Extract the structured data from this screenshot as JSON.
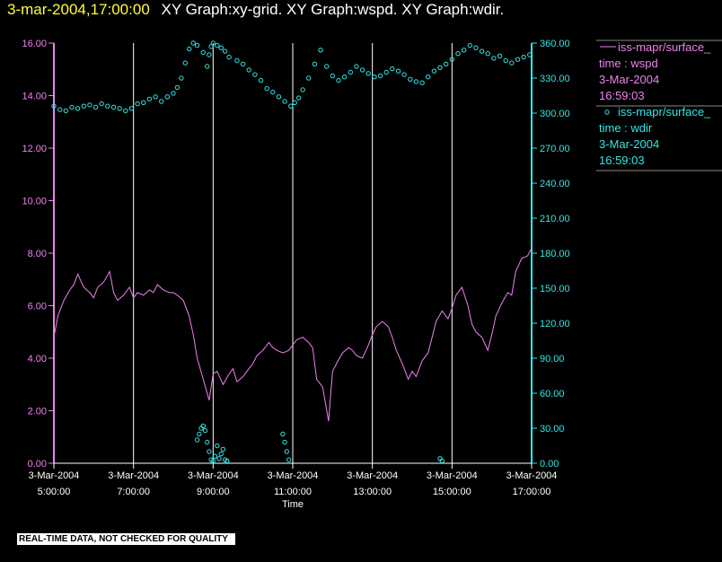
{
  "header": {
    "timestamp": "3-mar-2004,17:00:00",
    "graphs": "XY Graph:xy-grid.  XY Graph:wspd.  XY Graph:wdir."
  },
  "banner": "REAL-TIME DATA, NOT CHECKED FOR QUALITY",
  "colors": {
    "left_axis": "#ee82ee",
    "right_axis": "#33e6e6",
    "grid": "#ffffff",
    "background": "#000000"
  },
  "legend": [
    {
      "marker": "line",
      "lines": [
        "iss-mapr/surface_",
        "time : wspd",
        "3-Mar-2004",
        "16:59:03"
      ],
      "color": "#ee82ee"
    },
    {
      "marker": "circle",
      "lines": [
        "iss-mapr/surface_",
        "time : wdir",
        "3-Mar-2004",
        "16:59:03"
      ],
      "color": "#33e6e6"
    }
  ],
  "chart_data": {
    "type": "line",
    "xlabel": "Time",
    "x_range_hours": [
      5.0,
      17.0
    ],
    "x_ticks": [
      {
        "date": "3-Mar-2004",
        "time": "5:00:00"
      },
      {
        "date": "3-Mar-2004",
        "time": "7:00:00"
      },
      {
        "date": "3-Mar-2004",
        "time": "9:00:00"
      },
      {
        "date": "3-Mar-2004",
        "time": "11:00:00"
      },
      {
        "date": "3-Mar-2004",
        "time": "13:00:00"
      },
      {
        "date": "3-Mar-2004",
        "time": "15:00:00"
      },
      {
        "date": "3-Mar-2004",
        "time": "17:00:00"
      }
    ],
    "grid": "vertical",
    "y_left": {
      "range": [
        0,
        16
      ],
      "ticks": [
        "0.00",
        "2.00",
        "4.00",
        "6.00",
        "8.00",
        "10.00",
        "12.00",
        "14.00",
        "16.00"
      ]
    },
    "y_right": {
      "range": [
        0,
        360
      ],
      "ticks": [
        "0.00",
        "30.00",
        "60.00",
        "90.00",
        "120.00",
        "150.00",
        "180.00",
        "210.00",
        "240.00",
        "270.00",
        "300.00",
        "330.00",
        "360.00"
      ]
    },
    "series": [
      {
        "name": "iss-mapr/surface_ time : wspd",
        "axis": "left",
        "style": "line",
        "x_hours": [
          5.0,
          5.1,
          5.25,
          5.4,
          5.5,
          5.6,
          5.75,
          5.9,
          6.0,
          6.1,
          6.25,
          6.4,
          6.5,
          6.6,
          6.75,
          6.9,
          7.0,
          7.1,
          7.25,
          7.4,
          7.5,
          7.6,
          7.75,
          7.9,
          8.0,
          8.1,
          8.25,
          8.4,
          8.5,
          8.6,
          8.75,
          8.9,
          9.0,
          9.1,
          9.25,
          9.4,
          9.5,
          9.6,
          9.75,
          9.9,
          10.0,
          10.1,
          10.25,
          10.4,
          10.5,
          10.6,
          10.75,
          10.9,
          11.0,
          11.1,
          11.25,
          11.4,
          11.5,
          11.6,
          11.75,
          11.9,
          12.0,
          12.1,
          12.25,
          12.4,
          12.5,
          12.6,
          12.75,
          12.9,
          13.0,
          13.1,
          13.25,
          13.4,
          13.5,
          13.6,
          13.75,
          13.9,
          14.0,
          14.1,
          14.25,
          14.4,
          14.5,
          14.6,
          14.75,
          14.9,
          15.0,
          15.1,
          15.25,
          15.4,
          15.5,
          15.6,
          15.75,
          15.9,
          16.0,
          16.1,
          16.25,
          16.4,
          16.5,
          16.6,
          16.75,
          16.9,
          17.0
        ],
        "values": [
          4.8,
          5.6,
          6.2,
          6.6,
          6.8,
          7.2,
          6.7,
          6.5,
          6.3,
          6.7,
          6.9,
          7.3,
          6.5,
          6.2,
          6.4,
          6.7,
          6.3,
          6.5,
          6.4,
          6.6,
          6.5,
          6.8,
          6.6,
          6.5,
          6.5,
          6.4,
          6.2,
          5.6,
          4.9,
          4.0,
          3.2,
          2.4,
          3.4,
          3.5,
          3.0,
          3.4,
          3.6,
          3.1,
          3.3,
          3.6,
          3.8,
          4.1,
          4.3,
          4.6,
          4.4,
          4.3,
          4.2,
          4.3,
          4.5,
          4.7,
          4.8,
          4.6,
          4.4,
          3.2,
          2.9,
          1.6,
          3.5,
          3.8,
          4.2,
          4.4,
          4.3,
          4.1,
          4.0,
          4.5,
          4.9,
          5.2,
          5.4,
          5.2,
          4.8,
          4.3,
          3.8,
          3.2,
          3.5,
          3.3,
          3.9,
          4.2,
          4.8,
          5.4,
          5.8,
          5.5,
          5.9,
          6.4,
          6.7,
          6.0,
          5.3,
          5.0,
          4.8,
          4.3,
          4.9,
          5.6,
          6.1,
          6.5,
          6.4,
          7.3,
          7.8,
          7.9,
          8.2
        ]
      },
      {
        "name": "iss-mapr/surface_ time : wdir",
        "axis": "right",
        "style": "circles",
        "x_hours": [
          5.0,
          5.15,
          5.3,
          5.45,
          5.6,
          5.75,
          5.9,
          6.05,
          6.2,
          6.35,
          6.5,
          6.65,
          6.8,
          6.95,
          7.1,
          7.25,
          7.4,
          7.55,
          7.7,
          7.85,
          8.0,
          8.1,
          8.2,
          8.3,
          8.4,
          8.5,
          8.6,
          8.75,
          8.85,
          8.9,
          8.95,
          9.0,
          9.1,
          9.2,
          9.3,
          9.4,
          9.6,
          9.75,
          9.9,
          10.05,
          10.2,
          10.35,
          10.5,
          10.65,
          10.8,
          10.95,
          11.05,
          11.15,
          11.25,
          11.4,
          11.55,
          11.7,
          11.85,
          12.0,
          12.15,
          12.3,
          12.45,
          12.6,
          12.75,
          12.9,
          13.05,
          13.2,
          13.35,
          13.5,
          13.65,
          13.8,
          13.95,
          14.1,
          14.25,
          14.4,
          14.55,
          14.7,
          14.85,
          15.0,
          15.15,
          15.3,
          15.45,
          15.6,
          15.75,
          15.9,
          16.05,
          16.2,
          16.35,
          16.5,
          16.65,
          16.8,
          16.95
        ],
        "values": [
          306,
          303,
          302,
          305,
          304,
          306,
          307,
          305,
          308,
          306,
          305,
          304,
          302,
          304,
          308,
          309,
          312,
          314,
          310,
          314,
          317,
          322,
          330,
          343,
          355,
          360,
          358,
          352,
          340,
          350,
          357,
          360,
          358,
          356,
          353,
          348,
          345,
          342,
          337,
          333,
          328,
          321,
          318,
          314,
          310,
          306,
          309,
          313,
          320,
          330,
          342,
          354,
          340,
          332,
          328,
          331,
          335,
          340,
          337,
          334,
          331,
          332,
          335,
          338,
          336,
          333,
          329,
          327,
          326,
          331,
          336,
          339,
          342,
          346,
          351,
          354,
          358,
          356,
          353,
          351,
          347,
          349,
          345,
          343,
          346,
          348,
          350
        ]
      },
      {
        "name": "iss-mapr/surface_ time : wdir",
        "axis": "right",
        "style": "circles",
        "x_hours": [
          8.6,
          8.65,
          8.7,
          8.75,
          8.8,
          8.85,
          8.9,
          8.95,
          9.0,
          9.05,
          9.1,
          9.15,
          9.2,
          9.25,
          9.3,
          9.35,
          10.75,
          10.8,
          10.85,
          10.9,
          14.7,
          14.75
        ],
        "values": [
          20,
          25,
          30,
          32,
          28,
          18,
          10,
          3,
          2,
          6,
          15,
          4,
          8,
          12,
          3,
          2,
          25,
          18,
          10,
          3,
          4,
          2
        ]
      }
    ]
  }
}
